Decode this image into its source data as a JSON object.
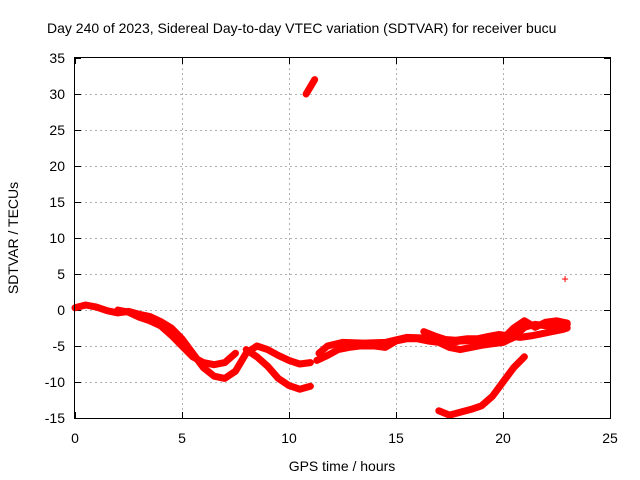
{
  "chart_data": {
    "type": "scatter",
    "title": "Day 240 of 2023, Sidereal Day-to-day VTEC variation (SDTVAR) for receiver bucu",
    "xlabel": "GPS time / hours",
    "ylabel": "SDTVAR / TECUs",
    "xlim": [
      0,
      25
    ],
    "ylim": [
      -15,
      35
    ],
    "xticks": [
      0,
      5,
      10,
      15,
      20,
      25
    ],
    "yticks": [
      -15,
      -10,
      -5,
      0,
      5,
      10,
      15,
      20,
      25,
      30,
      35
    ],
    "grid": true,
    "marker": "+",
    "color": "#ff0000",
    "series": [
      {
        "name": "track-1",
        "points": [
          [
            0,
            0.3
          ],
          [
            0.5,
            0.7
          ],
          [
            1,
            0.4
          ],
          [
            1.5,
            -0.1
          ],
          [
            2,
            -0.4
          ],
          [
            2.5,
            -0.2
          ],
          [
            3,
            -0.6
          ],
          [
            3.5,
            -0.9
          ],
          [
            4,
            -1.6
          ],
          [
            4.5,
            -2.5
          ],
          [
            5,
            -4
          ],
          [
            5.5,
            -6
          ],
          [
            6,
            -8
          ],
          [
            6.5,
            -9.2
          ],
          [
            7,
            -9.5
          ],
          [
            7.5,
            -8.5
          ],
          [
            8,
            -6
          ],
          [
            8.5,
            -5
          ],
          [
            9,
            -5.5
          ],
          [
            9.5,
            -6.3
          ],
          [
            10,
            -7
          ],
          [
            10.5,
            -7.5
          ],
          [
            11,
            -7.3
          ]
        ]
      },
      {
        "name": "track-2",
        "points": [
          [
            2,
            0
          ],
          [
            2.5,
            -0.3
          ],
          [
            3,
            -1
          ],
          [
            3.5,
            -1.5
          ],
          [
            4,
            -2.2
          ],
          [
            4.5,
            -3.5
          ],
          [
            5,
            -5
          ],
          [
            5.5,
            -6.5
          ],
          [
            6,
            -7.3
          ],
          [
            6.5,
            -7.6
          ],
          [
            7,
            -7.3
          ],
          [
            7.5,
            -6
          ]
        ]
      },
      {
        "name": "track-3",
        "points": [
          [
            8,
            -5.5
          ],
          [
            8.5,
            -6.5
          ],
          [
            9,
            -7.8
          ],
          [
            9.5,
            -9.5
          ],
          [
            10,
            -10.5
          ],
          [
            10.5,
            -11
          ],
          [
            11,
            -10.6
          ]
        ]
      },
      {
        "name": "track-4",
        "points": [
          [
            10.8,
            30
          ],
          [
            11,
            31
          ],
          [
            11.2,
            32
          ]
        ]
      },
      {
        "name": "track-5",
        "points": [
          [
            11.3,
            -7
          ],
          [
            11.8,
            -6.3
          ],
          [
            12.3,
            -5.5
          ],
          [
            12.8,
            -5.2
          ],
          [
            13.3,
            -5
          ],
          [
            14,
            -5
          ],
          [
            14.5,
            -5.2
          ],
          [
            15,
            -4.3
          ],
          [
            15.5,
            -4
          ],
          [
            16,
            -4
          ],
          [
            16.5,
            -4.3
          ],
          [
            17,
            -4.5
          ],
          [
            17.5,
            -5.2
          ],
          [
            18,
            -5.5
          ],
          [
            18.5,
            -5.2
          ],
          [
            19,
            -4.9
          ],
          [
            19.5,
            -4.7
          ],
          [
            20,
            -4.5
          ],
          [
            20.5,
            -3.8
          ],
          [
            21,
            -2.4
          ],
          [
            21.5,
            -2
          ],
          [
            22,
            -2.2
          ],
          [
            22.5,
            -2.3
          ],
          [
            23,
            -2
          ]
        ]
      },
      {
        "name": "track-6",
        "points": [
          [
            11.4,
            -6
          ],
          [
            11.8,
            -5
          ],
          [
            12.5,
            -4.5
          ],
          [
            13.5,
            -4.6
          ],
          [
            14.5,
            -4.5
          ],
          [
            15.5,
            -3.8
          ],
          [
            16.5,
            -3.9
          ],
          [
            17,
            -4.2
          ],
          [
            17.5,
            -4.6
          ],
          [
            18,
            -4.3
          ],
          [
            19,
            -4.2
          ],
          [
            20,
            -4
          ],
          [
            20.5,
            -2.5
          ],
          [
            21,
            -1.5
          ],
          [
            21.5,
            -2.4
          ],
          [
            22,
            -1.7
          ],
          [
            22.5,
            -1.5
          ],
          [
            23,
            -1.8
          ]
        ]
      },
      {
        "name": "track-7",
        "points": [
          [
            16.3,
            -3
          ],
          [
            16.8,
            -3.6
          ],
          [
            17.3,
            -4.1
          ],
          [
            17.8,
            -4.2
          ],
          [
            18.3,
            -4
          ],
          [
            18.8,
            -4
          ],
          [
            19.3,
            -3.7
          ],
          [
            19.8,
            -3.4
          ],
          [
            20.3,
            -3.6
          ],
          [
            20.8,
            -3.8
          ],
          [
            21.3,
            -3.6
          ],
          [
            21.8,
            -3.3
          ],
          [
            22.3,
            -3
          ],
          [
            22.8,
            -2.7
          ],
          [
            23,
            -2.5
          ]
        ]
      },
      {
        "name": "track-8",
        "points": [
          [
            17,
            -14
          ],
          [
            17.5,
            -14.6
          ],
          [
            18,
            -14.2
          ],
          [
            18.5,
            -13.8
          ],
          [
            19,
            -13.3
          ],
          [
            19.5,
            -12
          ],
          [
            20,
            -10
          ],
          [
            20.5,
            -8
          ],
          [
            21,
            -6.5
          ]
        ]
      },
      {
        "name": "outlier",
        "points": [
          [
            22.9,
            4.3
          ]
        ]
      }
    ]
  }
}
